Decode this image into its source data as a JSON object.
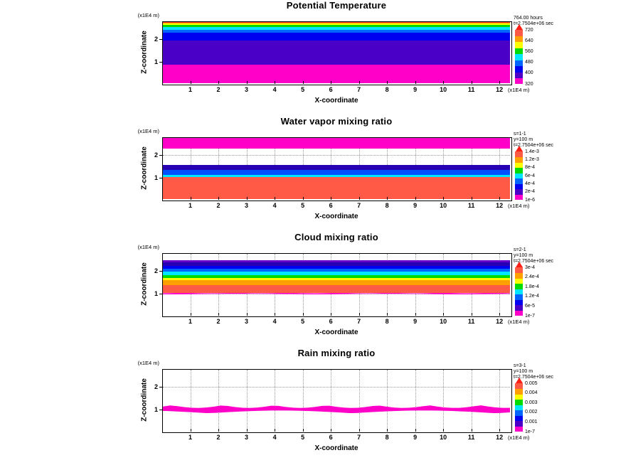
{
  "colors": {
    "background": "#FFFFFF",
    "frame": "#000000",
    "grid": "#999999"
  },
  "chart_data": [
    {
      "type": "heatmap",
      "title": "Potential Temperature",
      "xlabel": "X-coordinate",
      "ylabel": "Z-coordinate",
      "x_units": "(x1E4 m)",
      "y_units": "(x1E4 m)",
      "xlim": [
        0,
        12.4
      ],
      "zlim": [
        0,
        2.8
      ],
      "x_ticks": [
        "1",
        "2",
        "3",
        "4",
        "5",
        "6",
        "7",
        "8",
        "9",
        "10",
        "11",
        "12"
      ],
      "z_ticks": [
        "1",
        "2"
      ],
      "grid": "dotted",
      "legend_position": "right",
      "annotations": [
        "764.00 hours",
        "t=2.7504e+06 sec"
      ],
      "colorbar_labels": [
        "720",
        "640",
        "560",
        "480",
        "400",
        "320"
      ],
      "colorbar_cells": [
        "#FF00C8",
        "#4B00C8",
        "#0000F0",
        "#0064FF",
        "#00E6FF",
        "#00DC00",
        "#FFFF00",
        "#FFA000",
        "#FF5A46"
      ],
      "colorbar_arrow": "#FF1E14",
      "bands": [
        {
          "z_from": 0.0,
          "z_to": 0.85,
          "color": "#FF00C8"
        },
        {
          "z_from": 0.85,
          "z_to": 1.95,
          "color": "#4B00C8"
        },
        {
          "z_from": 1.95,
          "z_to": 2.28,
          "color": "#0000F0"
        },
        {
          "z_from": 2.28,
          "z_to": 2.42,
          "color": "#0064FF"
        },
        {
          "z_from": 2.42,
          "z_to": 2.54,
          "color": "#00E6FF"
        },
        {
          "z_from": 2.54,
          "z_to": 2.64,
          "color": "#00DC00"
        },
        {
          "z_from": 2.64,
          "z_to": 2.71,
          "color": "#FFFF00"
        },
        {
          "z_from": 2.71,
          "z_to": 2.76,
          "color": "#FFA000"
        },
        {
          "z_from": 2.76,
          "z_to": 2.8,
          "color": "#FF3C28"
        }
      ]
    },
    {
      "type": "heatmap",
      "title": "Water vapor mixing ratio",
      "xlabel": "X-coordinate",
      "ylabel": "Z-coordinate",
      "x_units": "(x1E4 m)",
      "y_units": "(x1E4 m)",
      "xlim": [
        0,
        12.4
      ],
      "zlim": [
        0,
        2.8
      ],
      "x_ticks": [
        "1",
        "2",
        "3",
        "4",
        "5",
        "6",
        "7",
        "8",
        "9",
        "10",
        "11",
        "12"
      ],
      "z_ticks": [
        "1",
        "2"
      ],
      "grid": "dotted",
      "legend_position": "right",
      "annotations": [
        "s=1-1",
        "y=100 m",
        "t=2.7504e+06 sec"
      ],
      "colorbar_labels": [
        "1.4e-3",
        "1.2e-3",
        "8e-4",
        "6e-4",
        "4e-4",
        "2e-4",
        "1e-6"
      ],
      "colorbar_cells": [
        "#FF00C8",
        "#4B00C8",
        "#0000F0",
        "#0064FF",
        "#00E6FF",
        "#00DC00",
        "#FFFF00",
        "#FFA000",
        "#FF5A46"
      ],
      "colorbar_arrow": "#FF1E14",
      "bands": [
        {
          "z_from": 0.0,
          "z_to": 1.02,
          "color": "#FF5A46"
        },
        {
          "z_from": 1.02,
          "z_to": 1.1,
          "color": "#00E6FF"
        },
        {
          "z_from": 1.1,
          "z_to": 1.33,
          "color": "#0050FF"
        },
        {
          "z_from": 1.33,
          "z_to": 1.57,
          "color": "#2800B4"
        },
        {
          "z_from": 2.28,
          "z_to": 2.8,
          "color": "#FF00C8"
        }
      ]
    },
    {
      "type": "heatmap",
      "title": "Cloud mixing ratio",
      "xlabel": "X-coordinate",
      "ylabel": "Z-coordinate",
      "x_units": "(x1E4 m)",
      "y_units": "(x1E4 m)",
      "xlim": [
        0,
        12.4
      ],
      "zlim": [
        0,
        2.8
      ],
      "x_ticks": [
        "1",
        "2",
        "3",
        "4",
        "5",
        "6",
        "7",
        "8",
        "9",
        "10",
        "11",
        "12"
      ],
      "z_ticks": [
        "1",
        "2"
      ],
      "grid": "dotted",
      "legend_position": "right",
      "annotations": [
        "s=2-1",
        "y=100 m",
        "t=2.7504e+06 sec"
      ],
      "colorbar_labels": [
        "3e-4",
        "2.4e-4",
        "1.8e-4",
        "1.2e-4",
        "6e-5",
        "1e-7"
      ],
      "colorbar_cells": [
        "#FF00C8",
        "#4B00C8",
        "#0000F0",
        "#0064FF",
        "#00E6FF",
        "#00DC00",
        "#FFFF00",
        "#FFA000",
        "#FF5A46"
      ],
      "colorbar_arrow": "#FF1E14",
      "bands": [
        {
          "z_from": 0.95,
          "z_to": 1.03,
          "color": "#FF00C8",
          "jagged": true
        },
        {
          "z_from": 1.03,
          "z_to": 1.38,
          "color": "#FF5A46"
        },
        {
          "z_from": 1.38,
          "z_to": 1.58,
          "color": "#FFA000"
        },
        {
          "z_from": 1.58,
          "z_to": 1.68,
          "color": "#FFFF00"
        },
        {
          "z_from": 1.68,
          "z_to": 1.82,
          "color": "#00DC00"
        },
        {
          "z_from": 1.82,
          "z_to": 1.96,
          "color": "#00E6FF"
        },
        {
          "z_from": 1.96,
          "z_to": 2.1,
          "color": "#0064FF"
        },
        {
          "z_from": 2.1,
          "z_to": 2.24,
          "color": "#0000F0"
        },
        {
          "z_from": 2.24,
          "z_to": 2.38,
          "color": "#2800B4"
        },
        {
          "z_from": 2.38,
          "z_to": 2.48,
          "color": "#6400C8"
        }
      ]
    },
    {
      "type": "heatmap",
      "title": "Rain mixing ratio",
      "xlabel": "X-coordinate",
      "ylabel": "Z-coordinate",
      "x_units": "(x1E4 m)",
      "y_units": "(x1E4 m)",
      "xlim": [
        0,
        12.4
      ],
      "zlim": [
        0,
        2.8
      ],
      "x_ticks": [
        "1",
        "2",
        "3",
        "4",
        "5",
        "6",
        "7",
        "8",
        "9",
        "10",
        "11",
        "12"
      ],
      "z_ticks": [
        "1",
        "2"
      ],
      "grid": "dotted",
      "legend_position": "right",
      "annotations": [
        "s=3-1",
        "y=100 m",
        "t=2.7504e+06 sec"
      ],
      "colorbar_labels": [
        "0.005",
        "0.004",
        "0.003",
        "0.002",
        "0.001",
        "1e-7"
      ],
      "colorbar_cells": [
        "#FF00C8",
        "#4B00C8",
        "#0000F0",
        "#0064FF",
        "#00E6FF",
        "#00DC00",
        "#FFFF00",
        "#FFA000",
        "#FF5A46"
      ],
      "colorbar_arrow": "#FF1E14",
      "bands": [
        {
          "z_from": 0.82,
          "z_to": 1.18,
          "color": "#FF00C8",
          "jagged": true
        }
      ]
    }
  ]
}
